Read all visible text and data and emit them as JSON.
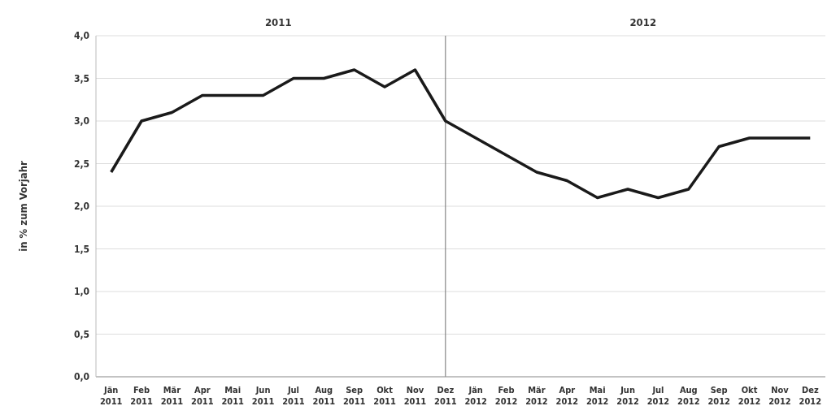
{
  "chart_data": {
    "type": "line",
    "ylabel": "in % zum Vorjahr",
    "annotations": [
      "2011",
      "2012"
    ],
    "categories": [
      "Jän 2011",
      "Feb 2011",
      "Mär 2011",
      "Apr 2011",
      "Mai 2011",
      "Jun 2011",
      "Jul 2011",
      "Aug 2011",
      "Sep 2011",
      "Okt 2011",
      "Nov 2011",
      "Dez 2011",
      "Jän 2012",
      "Feb 2012",
      "Mär 2012",
      "Apr 2012",
      "Mai 2012",
      "Jun 2012",
      "Jul 2012",
      "Aug 2012",
      "Sep 2012",
      "Okt 2012",
      "Nov 2012",
      "Dez 2012"
    ],
    "series": [
      {
        "color": "#1a1a1a",
        "values": [
          2.4,
          3.0,
          3.1,
          3.3,
          3.3,
          3.3,
          3.5,
          3.5,
          3.6,
          3.4,
          3.6,
          3.0,
          2.8,
          2.6,
          2.4,
          2.3,
          2.1,
          2.2,
          2.1,
          2.2,
          2.7,
          2.8,
          2.8,
          2.8
        ]
      }
    ],
    "ylim": [
      0,
      4
    ],
    "yticks": [
      {
        "value": 0,
        "label": "0,0"
      },
      {
        "value": 0.5,
        "label": "0,5"
      },
      {
        "value": 1,
        "label": "1,0"
      },
      {
        "value": 1.5,
        "label": "1,5"
      },
      {
        "value": 2,
        "label": "2,0"
      },
      {
        "value": 2.5,
        "label": "2,5"
      },
      {
        "value": 3,
        "label": "3,0"
      },
      {
        "value": 3.5,
        "label": "3,5"
      },
      {
        "value": 4,
        "label": "4,0"
      }
    ],
    "ref_lines": [
      {
        "axis": "x",
        "value": "Dez 2011",
        "color": "#707070"
      }
    ],
    "grid": "y",
    "marker": "none",
    "line_style": "solid",
    "legend": false
  }
}
